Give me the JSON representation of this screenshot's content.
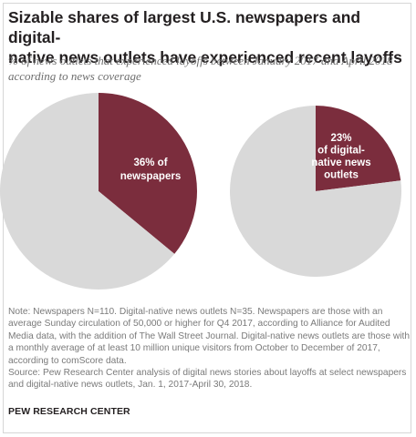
{
  "title_line1": "Sizable shares of largest U.S. newspapers and digital-",
  "title_line2": "native news outlets have experienced recent layoffs",
  "subtitle": "% of news outlets that experienced layoffs between January 2017 and April 2018 according to news coverage",
  "chart_data": [
    {
      "type": "pie",
      "categories": [
        "Experienced layoffs",
        "Other"
      ],
      "values": [
        36,
        64
      ],
      "label_lines": [
        "36% of",
        "newspapers"
      ],
      "colors": [
        "#7b2d3d",
        "#d9d9d9"
      ]
    },
    {
      "type": "pie",
      "categories": [
        "Experienced layoffs",
        "Other"
      ],
      "values": [
        23,
        77
      ],
      "label_lines": [
        "23%",
        "of digital-",
        "native news",
        "outlets"
      ],
      "colors": [
        "#7b2d3d",
        "#d9d9d9"
      ]
    }
  ],
  "note": "Note: Newspapers N=110. Digital-native news outlets N=35. Newspapers are those with an average Sunday circulation of 50,000 or higher for Q4 2017, according to Alliance for Audited Media data, with the addition of The Wall Street Journal. Digital-native news outlets are those with a monthly average of at least 10 million unique visitors from October to December of 2017, according to comScore data.",
  "source": "Source: Pew Research Center analysis of digital news stories about layoffs at select newspapers and digital-native news outlets, Jan. 1, 2017-April 30, 2018.",
  "brand": "PEW RESEARCH CENTER"
}
